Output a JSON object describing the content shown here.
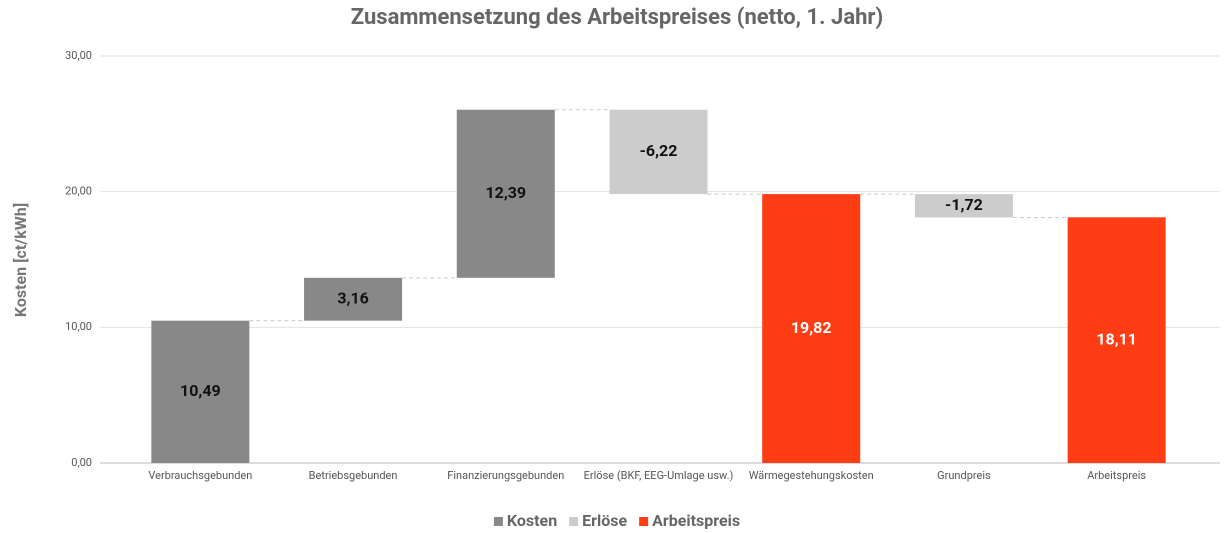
{
  "chart_data": {
    "type": "waterfall",
    "title": "Zusammensetzung des Arbeitspreises (netto, 1. Jahr)",
    "y_label": "Kosten [ct/kWh]",
    "categories": [
      "Verbrauchsgebunden",
      "Betriebsgebunden",
      "Finanzierungsgebunden",
      "Erlöse (BKF, EEG-Umlage usw.)",
      "Wärmegestehungskosten",
      "Grundpreis",
      "Arbeitspreis"
    ],
    "values": [
      10.49,
      3.16,
      12.39,
      -6.22,
      19.82,
      -1.72,
      18.11
    ],
    "value_labels": [
      "10,49",
      "3,16",
      "12,39",
      "-6,22",
      "19,82",
      "-1,72",
      "18,11"
    ],
    "series": [
      {
        "name": "Kosten",
        "color": "#888888"
      },
      {
        "name": "Erlöse",
        "color": "#cccccc"
      },
      {
        "name": "Arbeitspreis",
        "color": "#ff3d14"
      }
    ],
    "bar_series": [
      0,
      0,
      0,
      1,
      2,
      1,
      2
    ],
    "total_series": 2,
    "ylim": [
      0,
      30
    ],
    "yticks": [
      {
        "value": 0,
        "label": "0,00"
      },
      {
        "value": 10,
        "label": "10,00"
      },
      {
        "value": 20,
        "label": "20,00"
      },
      {
        "value": 30,
        "label": "30,00"
      }
    ],
    "grid": true,
    "legend": "bottom"
  }
}
